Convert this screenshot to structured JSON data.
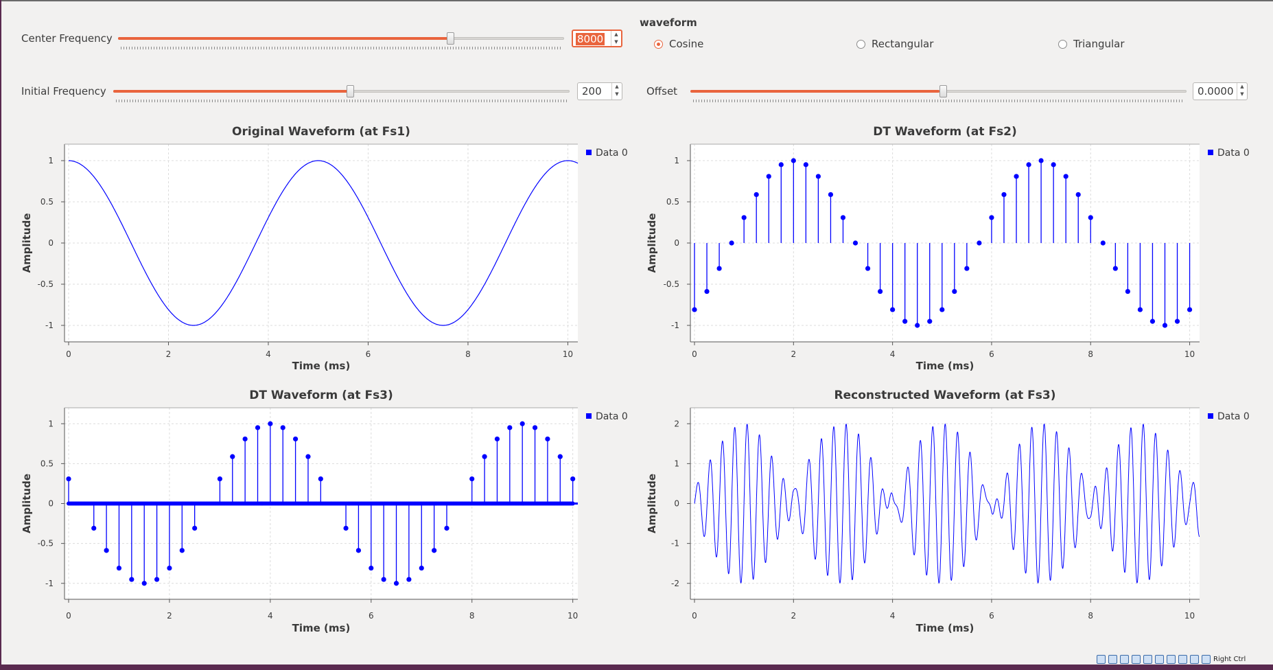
{
  "controls": {
    "center_frequency": {
      "label": "Center Frequency",
      "value": "8000",
      "slider_fraction": 0.745
    },
    "initial_frequency": {
      "label": "Initial Frequency",
      "value": "200",
      "slider_fraction": 0.5
    },
    "offset": {
      "label": "Offset",
      "value": "0.0000",
      "slider_fraction": 0.5
    },
    "waveform": {
      "title": "waveform",
      "options": [
        {
          "label": "Cosine",
          "selected": true
        },
        {
          "label": "Rectangular",
          "selected": false
        },
        {
          "label": "Triangular",
          "selected": false
        }
      ]
    }
  },
  "colors": {
    "accent": "#e9643d",
    "series": "#0000ff"
  },
  "chart_data": [
    {
      "id": "original",
      "type": "line",
      "title": "Original Waveform (at Fs1)",
      "xlabel": "Time (ms)",
      "ylabel": "Amplitude",
      "xlim": [
        0,
        10.2
      ],
      "ylim": [
        -1.2,
        1.2
      ],
      "xticks": [
        0,
        2,
        4,
        6,
        8,
        10
      ],
      "yticks": [
        1,
        0.5,
        0,
        -0.5,
        -1
      ],
      "legend": "Data 0",
      "series": [
        {
          "name": "Data 0",
          "signal": "cosine",
          "frequency_khz": 0.2
        }
      ]
    },
    {
      "id": "dt_fs2",
      "type": "scatter",
      "title": "DT Waveform (at Fs2)",
      "xlabel": "Time (ms)",
      "ylabel": "Amplitude",
      "xlim": [
        0,
        10.2
      ],
      "ylim": [
        -1.2,
        1.2
      ],
      "xticks": [
        0,
        2,
        4,
        6,
        8,
        10
      ],
      "yticks": [
        1,
        0.5,
        0,
        -0.5,
        -1
      ],
      "legend": "Data 0",
      "series": [
        {
          "name": "Data 0",
          "sample_period_ms": 0.25,
          "frequency_khz": 0.2,
          "phase_ms": 0.5,
          "stems": true
        }
      ]
    },
    {
      "id": "dt_fs3",
      "type": "scatter",
      "title": "DT Waveform (at Fs3)",
      "xlabel": "Time (ms)",
      "ylabel": "Amplitude",
      "xlim": [
        0,
        10.1
      ],
      "ylim": [
        -1.2,
        1.2
      ],
      "xticks": [
        0,
        2,
        4,
        6,
        8,
        10
      ],
      "yticks": [
        1,
        0.5,
        0,
        -0.5,
        -1
      ],
      "legend": "Data 0",
      "series": [
        {
          "name": "Data 0",
          "nonzero_sample_period_ms": 0.25,
          "dense_sample_period_ms": 0.025,
          "frequency_khz": 0.2,
          "phase_ms": 0.5,
          "stems": true
        }
      ]
    },
    {
      "id": "reconstructed",
      "type": "line",
      "title": "Reconstructed Waveform (at Fs3)",
      "xlabel": "Time (ms)",
      "ylabel": "Amplitude",
      "xlim": [
        0,
        10.2
      ],
      "ylim": [
        -2.4,
        2.4
      ],
      "xticks": [
        0,
        2,
        4,
        6,
        8,
        10
      ],
      "yticks": [
        2,
        1,
        0,
        -1,
        -2
      ],
      "legend": "Data 0",
      "series": [
        {
          "name": "Data 0",
          "envelope_frequency_khz": 0.2,
          "carrier_frequency_khz": 4.0,
          "peak_amplitude": 2
        }
      ]
    }
  ],
  "taskbar": {
    "host_key": "Right Ctrl"
  }
}
